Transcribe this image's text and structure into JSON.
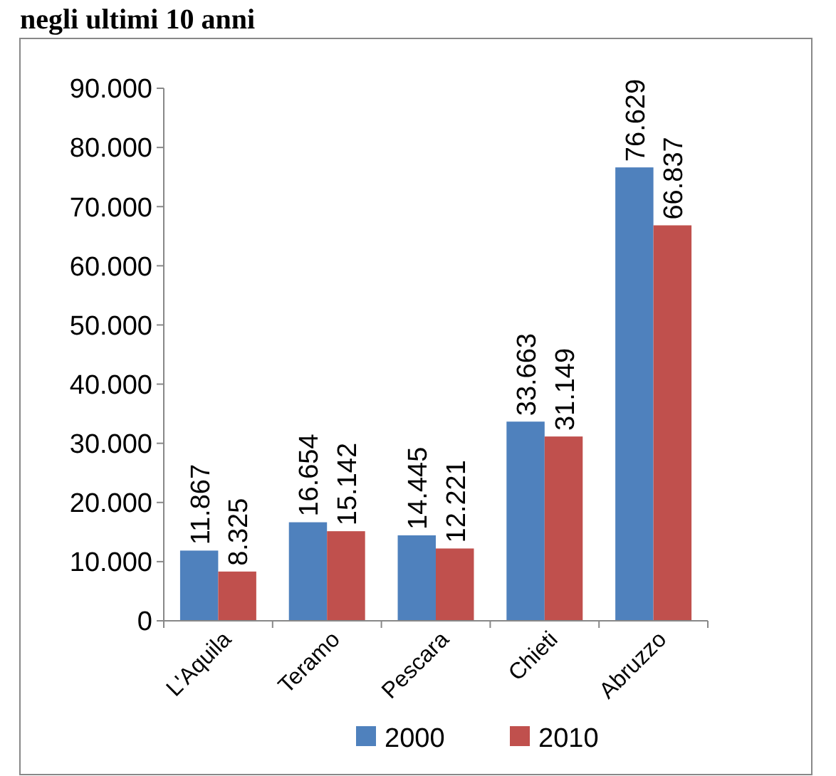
{
  "chart_data": {
    "type": "bar",
    "title": "negli ultimi 10 anni",
    "categories": [
      "L'Aquila",
      "Teramo",
      "Pescara",
      "Chieti",
      "Abruzzo"
    ],
    "series": [
      {
        "name": "2000",
        "color": "#4f81bd",
        "values": [
          11867,
          16654,
          14445,
          33663,
          76629
        ],
        "value_labels": [
          "11.867",
          "16.654",
          "14.445",
          "33.663",
          "76.629"
        ]
      },
      {
        "name": "2010",
        "color": "#c0504d",
        "values": [
          8325,
          15142,
          12221,
          31149,
          66837
        ],
        "value_labels": [
          "8.325",
          "15.142",
          "12.221",
          "31.149",
          "66.837"
        ]
      }
    ],
    "ylim": [
      0,
      90000
    ],
    "yticks": [
      0,
      {
        "value": 10000,
        "label": "10.000"
      },
      {
        "value": 20000,
        "label": "20.000"
      },
      {
        "value": 30000,
        "label": "30.000"
      },
      {
        "value": 40000,
        "label": "40.000"
      },
      {
        "value": 50000,
        "label": "50.000"
      },
      {
        "value": 60000,
        "label": "60.000"
      },
      {
        "value": 70000,
        "label": "70.000"
      },
      {
        "value": 80000,
        "label": "80.000"
      },
      {
        "value": 90000,
        "label": "90.000"
      }
    ],
    "legend": "bottom",
    "grid": false
  }
}
